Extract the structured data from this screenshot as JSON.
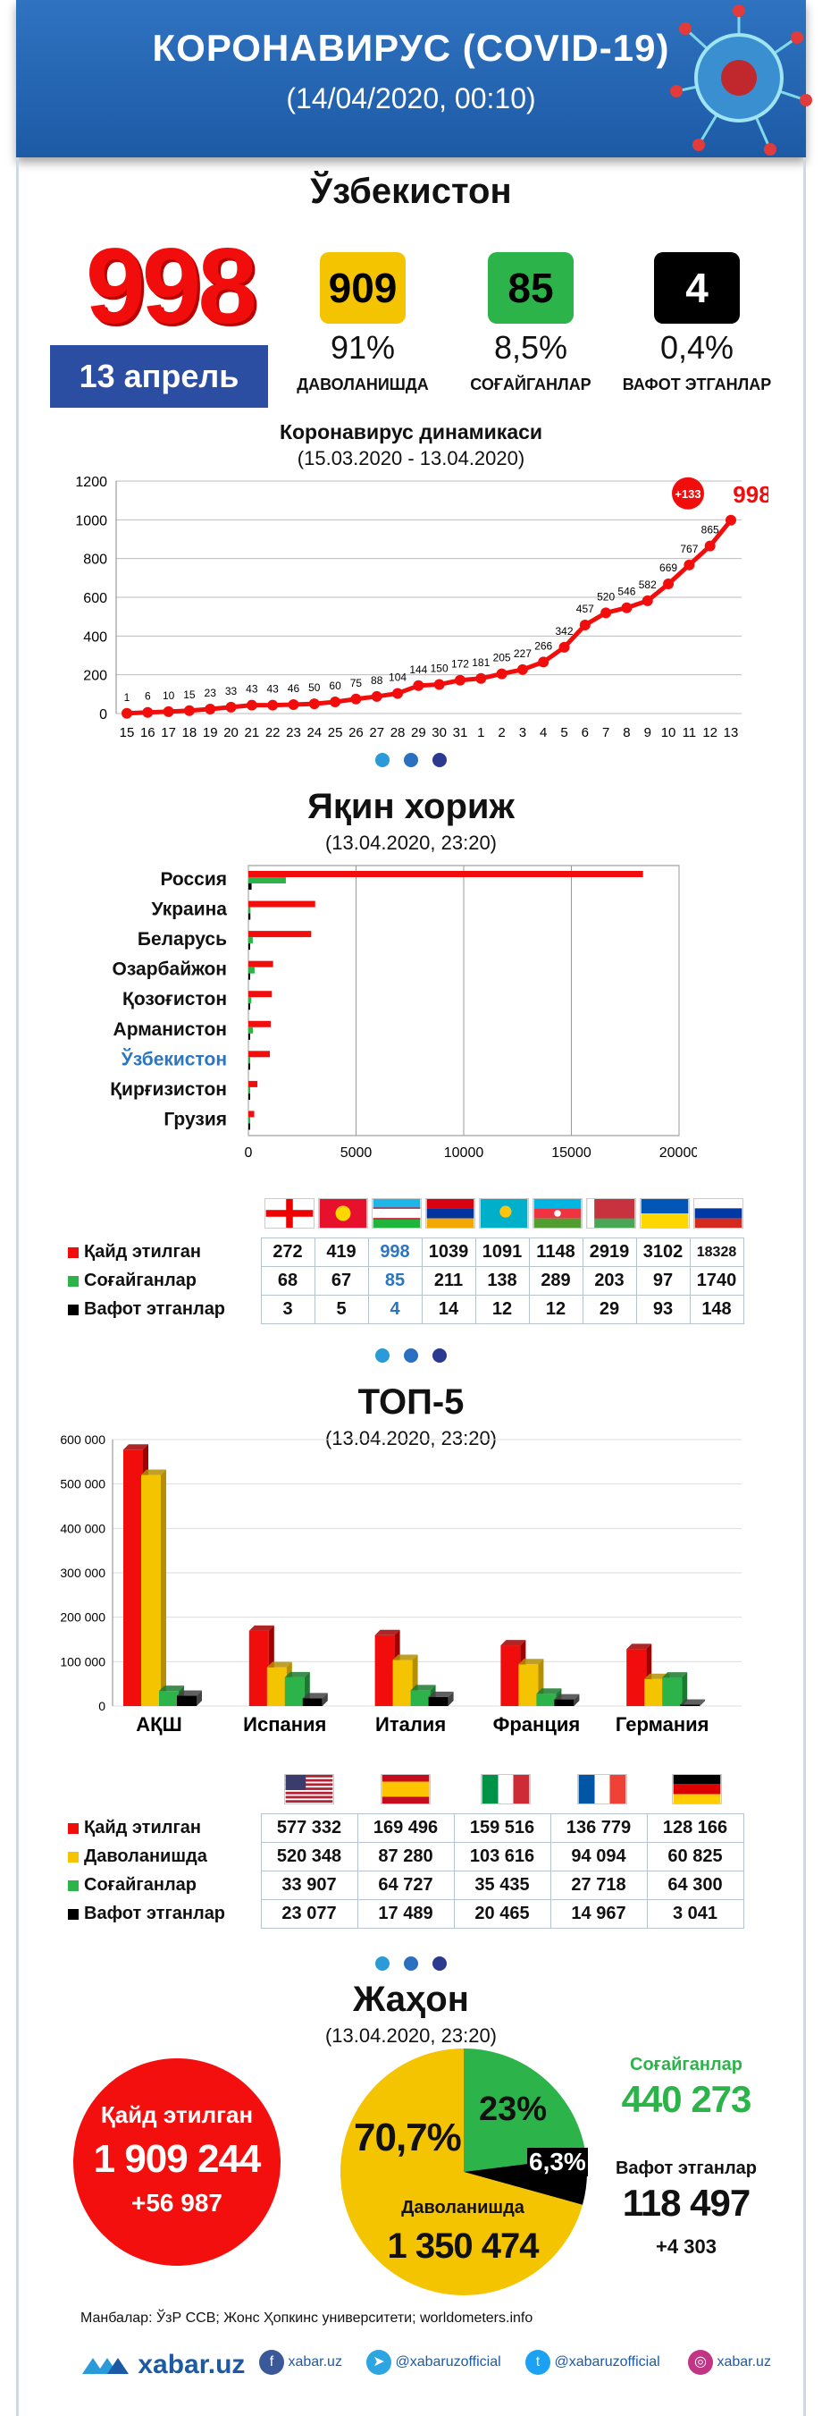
{
  "header": {
    "title": "КОРОНАВИРУС (COVID-19)",
    "subtitle": "(14/04/2020, 00:10)"
  },
  "uzb": {
    "title": "Ўзбекистон",
    "total": "998",
    "date": "13 апрель",
    "kpis": [
      {
        "value": "909",
        "pct": "91%",
        "label": "ДАВОЛАНИШДА",
        "color": "#f5c400"
      },
      {
        "value": "85",
        "pct": "8,5%",
        "label": "СОҒАЙГАНЛАР",
        "color": "#2cb34a"
      },
      {
        "value": "4",
        "pct": "0,4%",
        "label": "ВАФОТ ЭТГАНЛАР",
        "color": "#000000"
      }
    ]
  },
  "dyn": {
    "title": "Коронавирус динамикаси",
    "subtitle": "(15.03.2020 - 13.04.2020)",
    "badge": "+133",
    "last": "998"
  },
  "near": {
    "title": "Яқин хориж",
    "subtitle": "(13.04.2020, 23:20)"
  },
  "top5": {
    "title": "ТОП-5",
    "subtitle": "(13.04.2020, 23:20)"
  },
  "world": {
    "title": "Жаҳон",
    "subtitle": "(13.04.2020, 23:20)",
    "cases_label": "Қайд этилган",
    "cases": "1 909 244",
    "cases_new": "+56 987",
    "recovered_label": "Соғайганлар",
    "recovered": "440 273",
    "deaths_label": "Вафот этганлар",
    "deaths": "118 497",
    "deaths_new": "+4 303",
    "active_label": "Даволанишда",
    "active": "1 350 474",
    "pct_active": "70,7%",
    "pct_recovered": "23%",
    "pct_deaths": "6,3%"
  },
  "near_table": {
    "rows": [
      {
        "label": "Қайд этилган",
        "color": "#f20d0d",
        "values": [
          "272",
          "419",
          "998",
          "1039",
          "1091",
          "1148",
          "2919",
          "3102",
          "18328"
        ]
      },
      {
        "label": "Соғайганлар",
        "color": "#2cb34a",
        "values": [
          "68",
          "67",
          "85",
          "211",
          "138",
          "289",
          "203",
          "97",
          "1740"
        ]
      },
      {
        "label": "Вафот этганлар",
        "color": "#000000",
        "values": [
          "3",
          "5",
          "4",
          "14",
          "12",
          "12",
          "29",
          "93",
          "148"
        ]
      }
    ]
  },
  "top_table": {
    "rows": [
      {
        "label": "Қайд этилган",
        "color": "#f20d0d",
        "values": [
          "577 332",
          "169 496",
          "159 516",
          "136 779",
          "128 166"
        ]
      },
      {
        "label": "Даволанишда",
        "color": "#f5c400",
        "values": [
          "520 348",
          "87 280",
          "103 616",
          "94 094",
          "60 825"
        ]
      },
      {
        "label": "Соғайганлар",
        "color": "#2cb34a",
        "values": [
          "33 907",
          "64 727",
          "35 435",
          "27 718",
          "64 300"
        ]
      },
      {
        "label": "Вафот этганлар",
        "color": "#000000",
        "values": [
          "23 077",
          "17 489",
          "20 465",
          "14 967",
          "3 041"
        ]
      }
    ]
  },
  "source": "Манбалар: ЎзР ССВ; Жонс Ҳопкинс университети; worldometers.info",
  "footer": {
    "brand": "xabar.uz",
    "fb": "xabar.uz",
    "tg": "@xabaruzofficial",
    "tw": "@xabaruzofficial",
    "ig": "xabar.uz"
  },
  "chart_data": [
    {
      "type": "line",
      "title": "Коронавирус динамикаси",
      "subtitle": "(15.03.2020 - 13.04.2020)",
      "categories": [
        "15",
        "16",
        "17",
        "18",
        "19",
        "20",
        "21",
        "22",
        "23",
        "24",
        "25",
        "26",
        "27",
        "28",
        "29",
        "30",
        "31",
        "1",
        "2",
        "3",
        "4",
        "5",
        "6",
        "7",
        "8",
        "9",
        "10",
        "11",
        "12",
        "13"
      ],
      "values": [
        1,
        6,
        10,
        15,
        23,
        33,
        43,
        43,
        46,
        50,
        60,
        75,
        88,
        104,
        144,
        150,
        172,
        181,
        205,
        227,
        266,
        342,
        457,
        520,
        546,
        582,
        669,
        767,
        865,
        998
      ],
      "ylim": [
        0,
        1200
      ],
      "yticks": [
        0,
        200,
        400,
        600,
        800,
        1000,
        1200
      ],
      "grid": true,
      "color": "#f20d0d"
    },
    {
      "type": "bar",
      "orientation": "horizontal",
      "categories": [
        "Россия",
        "Украина",
        "Беларусь",
        "Озарбайжон",
        "Қозоғистон",
        "Арманистон",
        "Ўзбекистон",
        "Қирғизистон",
        "Грузия"
      ],
      "series": [
        {
          "values": [
            18328,
            3102,
            2919,
            1148,
            1091,
            1039,
            998,
            419,
            272
          ],
          "color": "#f20d0d"
        },
        {
          "values": [
            1740,
            97,
            203,
            289,
            138,
            211,
            85,
            67,
            68
          ],
          "color": "#2cb34a"
        },
        {
          "values": [
            148,
            93,
            29,
            12,
            12,
            14,
            4,
            5,
            3
          ],
          "color": "#000000"
        }
      ],
      "xlim": [
        0,
        20000
      ],
      "xticks": [
        0,
        5000,
        10000,
        15000,
        20000
      ],
      "highlight": "Ўзбекистон"
    },
    {
      "type": "bar",
      "categories": [
        "АҚШ",
        "Испания",
        "Италия",
        "Франция",
        "Германия"
      ],
      "series": [
        {
          "values": [
            577332,
            169496,
            159516,
            136779,
            128166
          ],
          "color": "#f20d0d"
        },
        {
          "values": [
            520348,
            87280,
            103616,
            94094,
            60825
          ],
          "color": "#f5c400"
        },
        {
          "values": [
            33907,
            64727,
            35435,
            27718,
            64300
          ],
          "color": "#2cb34a"
        },
        {
          "values": [
            23077,
            17489,
            20465,
            14967,
            3041
          ],
          "color": "#000000"
        }
      ],
      "ylim": [
        0,
        600000
      ],
      "yticks": [
        "0",
        "100 000",
        "200 000",
        "300 000",
        "400 000",
        "500 000",
        "600 000"
      ]
    },
    {
      "type": "pie",
      "slices": [
        {
          "label": "Даволанишда",
          "value": 70.7,
          "color": "#f5c400"
        },
        {
          "label": "Соғайганлар",
          "value": 23,
          "color": "#2cb34a"
        },
        {
          "label": "Вафот этганлар",
          "value": 6.3,
          "color": "#000000"
        }
      ]
    }
  ]
}
